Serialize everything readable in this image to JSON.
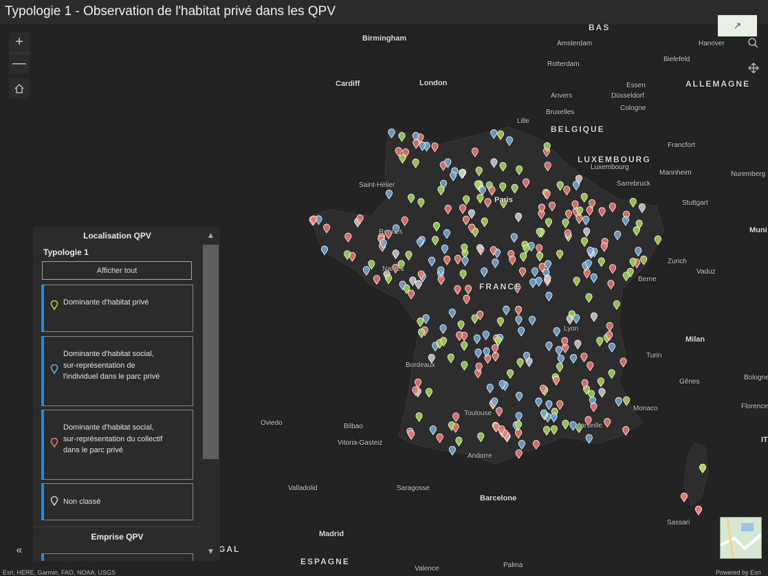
{
  "title": "Typologie 1 - Observation de l'habitat privé dans les QPV",
  "map": {
    "labels": {
      "bas": "BAS",
      "birmingham": "Birmingham",
      "amsterdam": "Amsterdam",
      "hanover": "Hanover",
      "bielefeld": "Bielefeld",
      "rotterdam": "Rotterdam",
      "cardiff": "Cardiff",
      "london": "London",
      "essen": "Essen",
      "allemagne": "ALLEMAGNE",
      "anvers": "Anvers",
      "dusseldorf": "Düsseldorf",
      "cologne": "Cologne",
      "bruxelles": "Bruxelles",
      "lille": "Lille",
      "belgique": "BELGIQUE",
      "francfort": "Francfort",
      "luxembourg_country": "LUXEMBOURG",
      "luxembourg_city": "Luxembourg",
      "mannheim": "Mannheim",
      "nuremberg": "Nuremberg",
      "saint_helier": "Saint-Hélier",
      "paris": "Paris",
      "sarrebruck": "Sarrebruck",
      "stuttgart": "Stuttgart",
      "rennes": "Rennes",
      "munich": "Muni",
      "nantes": "Nantes",
      "zurich": "Zurich",
      "vaduz": "Vaduz",
      "france": "FRANCE",
      "berne": "Berne",
      "lyon": "Lyon",
      "milan": "Milan",
      "bordeaux": "Bordeaux",
      "turin": "Turin",
      "genes": "Gênes",
      "bologne": "Bologne",
      "monaco": "Monaco",
      "florence": "Florence",
      "oviedo": "Oviedo",
      "bilbao": "Bilbao",
      "toulouse": "Toulouse",
      "marseille": "Marseille",
      "vitoria": "Vitoria-Gasteiz",
      "andorre": "Andorre",
      "it": "IT",
      "valladolid": "Valladolid",
      "saragosse": "Saragosse",
      "barcelone": "Barcelone",
      "sassari": "Sassari",
      "madrid": "Madrid",
      "gal": "GAL",
      "espagne": "ESPAGNE",
      "palma": "Palma",
      "valence": "Valence"
    },
    "zoom_in": "+",
    "zoom_out": "—",
    "attribution": "Esri, HERE, Garmin, FAO, NOAA, USGS",
    "powered_by": "Powered by Esri"
  },
  "legend": {
    "heading": "Localisation QPV",
    "subheading": "Typologie 1",
    "show_all": "Afficher tout",
    "items": [
      {
        "label": "Dominante d'habitat privé",
        "color": "#a6d84a"
      },
      {
        "label": "Dominante d'habitat social, sur-représentation de l'individuel dans le parc privé",
        "color": "#6ea8d6"
      },
      {
        "label": "Dominante d'habitat social, sur-représentation du collectif dans le parc privé",
        "color": "#f0766c"
      },
      {
        "label": "Non classé",
        "color": "#cccccc"
      }
    ],
    "section2_heading": "Emprise QPV"
  }
}
